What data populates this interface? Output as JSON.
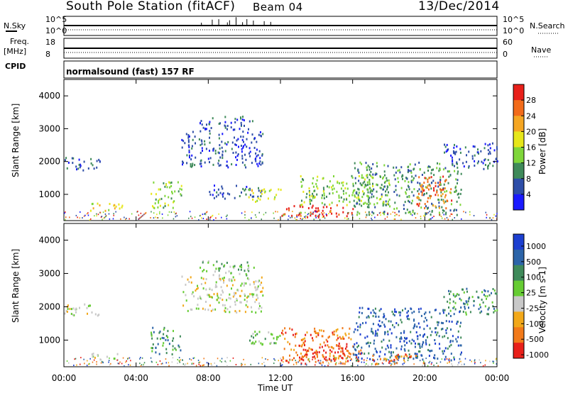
{
  "header": {
    "station": "South Pole Station (fitACF)",
    "beam": "Beam 04",
    "date": "13/Dec/2014"
  },
  "status_panels": {
    "nsky_label": "N.Sky",
    "nsearch_label": "N.Search",
    "noise_ticks_left": [
      "10^5",
      "10^0"
    ],
    "noise_ticks_right": [
      "10^5",
      "10^0"
    ],
    "freq_label": "Freq.",
    "freq_unit": "[MHz]",
    "freq_ticks": [
      "18",
      "8"
    ],
    "nave_label": "Nave",
    "nave_ticks": [
      "60",
      "0"
    ],
    "cpid_label": "CPID",
    "cpid_value": "normalsound (fast) 157 RF"
  },
  "colors": {
    "power_scale": [
      "#1a1aff",
      "#2e4ea8",
      "#3f8a5a",
      "#7fd63a",
      "#e6e61a",
      "#f5a623",
      "#f26b1a",
      "#e8201a"
    ],
    "velocity_scale": [
      "#1c3fd0",
      "#2c64a8",
      "#3f8a5a",
      "#66cc33",
      "#c8c8c8",
      "#f2a81a",
      "#f27a1a",
      "#e8201a"
    ]
  },
  "chart_data": [
    {
      "type": "heatmap",
      "name": "power",
      "xlabel": "Time UT",
      "ylabel": "Slant Range [km]",
      "x_ticks": [
        "00:00",
        "04:00",
        "08:00",
        "12:00",
        "16:00",
        "20:00",
        "00:00"
      ],
      "y_ticks": [
        1000,
        2000,
        3000,
        4000
      ],
      "ylim": [
        200,
        4500
      ],
      "colorbar": {
        "label": "Power [dB]",
        "ticks": [
          "4",
          "8",
          "12",
          "16",
          "20",
          "24",
          "28"
        ]
      },
      "scatter_regions": [
        {
          "t_start": 0.0,
          "t_end": 2.0,
          "r_low": 1750,
          "r_high": 2150,
          "level": 1
        },
        {
          "t_start": 1.3,
          "t_end": 3.3,
          "r_low": 500,
          "r_high": 750,
          "level": 4
        },
        {
          "t_start": 4.8,
          "t_end": 6.5,
          "r_low": 600,
          "r_high": 1400,
          "level": 3
        },
        {
          "t_start": 6.5,
          "t_end": 11.0,
          "r_low": 1850,
          "r_high": 2950,
          "level": 1
        },
        {
          "t_start": 7.5,
          "t_end": 10.5,
          "r_low": 2950,
          "r_high": 3400,
          "level": 1
        },
        {
          "t_start": 8.0,
          "t_end": 11.0,
          "r_low": 900,
          "r_high": 1300,
          "level": 1
        },
        {
          "t_start": 10.2,
          "t_end": 12.0,
          "r_low": 800,
          "r_high": 1200,
          "level": 4
        },
        {
          "t_start": 12.0,
          "t_end": 16.0,
          "r_low": 300,
          "r_high": 700,
          "level": 7
        },
        {
          "t_start": 13.0,
          "t_end": 18.0,
          "r_low": 700,
          "r_high": 1600,
          "level": 3
        },
        {
          "t_start": 16.0,
          "t_end": 22.0,
          "r_low": 400,
          "r_high": 2000,
          "level": 2
        },
        {
          "t_start": 19.5,
          "t_end": 21.5,
          "r_low": 600,
          "r_high": 1600,
          "level": 6
        },
        {
          "t_start": 21.0,
          "t_end": 24.0,
          "r_low": 1800,
          "r_high": 2600,
          "level": 1
        }
      ]
    },
    {
      "type": "heatmap",
      "name": "velocity",
      "xlabel": "Time UT",
      "ylabel": "Slant Range [km]",
      "x_ticks": [
        "00:00",
        "04:00",
        "08:00",
        "12:00",
        "16:00",
        "20:00",
        "00:00"
      ],
      "y_ticks": [
        1000,
        2000,
        3000,
        4000
      ],
      "ylim": [
        200,
        4500
      ],
      "colorbar": {
        "label": "Velocity [m s-1]",
        "ticks": [
          "1000",
          "500",
          "100",
          "25",
          "-25",
          "-100",
          "-500",
          "-1000"
        ]
      },
      "scatter_regions": [
        {
          "t_start": 0.0,
          "t_end": 2.0,
          "r_low": 1750,
          "r_high": 2150,
          "level": 4
        },
        {
          "t_start": 1.5,
          "t_end": 3.0,
          "r_low": 400,
          "r_high": 650,
          "level": 4
        },
        {
          "t_start": 4.8,
          "t_end": 6.5,
          "r_low": 600,
          "r_high": 1400,
          "level": 2
        },
        {
          "t_start": 6.5,
          "t_end": 11.0,
          "r_low": 1850,
          "r_high": 2950,
          "level": 4
        },
        {
          "t_start": 7.5,
          "t_end": 10.5,
          "r_low": 2950,
          "r_high": 3400,
          "level": 3
        },
        {
          "t_start": 10.2,
          "t_end": 12.0,
          "r_low": 800,
          "r_high": 1300,
          "level": 3
        },
        {
          "t_start": 12.0,
          "t_end": 16.0,
          "r_low": 300,
          "r_high": 1400,
          "level": 6
        },
        {
          "t_start": 13.0,
          "t_end": 16.5,
          "r_low": 400,
          "r_high": 900,
          "level": 7
        },
        {
          "t_start": 16.0,
          "t_end": 22.0,
          "r_low": 400,
          "r_high": 2000,
          "level": 1
        },
        {
          "t_start": 17.0,
          "t_end": 20.0,
          "r_low": 300,
          "r_high": 600,
          "level": 6
        },
        {
          "t_start": 21.0,
          "t_end": 24.0,
          "r_low": 1800,
          "r_high": 2600,
          "level": 2
        }
      ]
    }
  ]
}
